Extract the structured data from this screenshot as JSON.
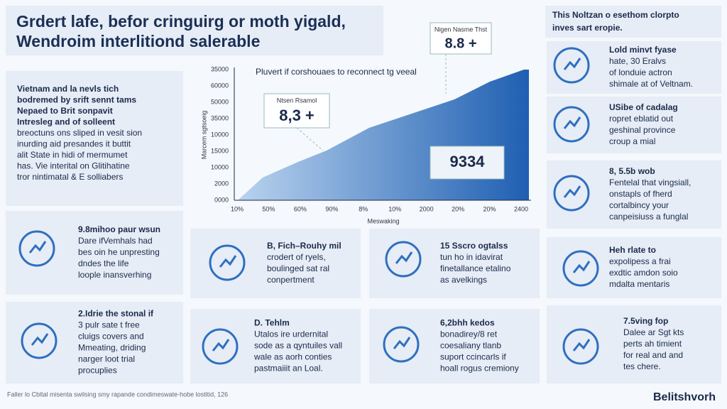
{
  "header": {
    "title_lines": [
      "Grdert lafe, befor cringuirg or moth yigald,",
      "Wendroim interlitiond salerable"
    ]
  },
  "intro": {
    "lines": [
      "Vietnam and la nevls tich",
      "bodremed by srift sennt tams",
      "Nepaed to Brit sonpavit",
      "Intresleg and of solleent",
      "breoctuns ons sliped in vesit sion",
      "inurding aid presandes it buttit",
      "alit State in hidi of mermumet",
      "has. Vie interital on Glitihatine",
      "tror nintimatal & E solliabers"
    ]
  },
  "chart": {
    "title": "Pluvert if corshouaes to reconnect tg veeal",
    "y_axis_label": "Marcem sgtsoeig",
    "x_axis_label": "Meswaking",
    "y_labels": [
      "35000",
      "60000",
      "50000",
      "35000",
      "10000",
      "15000",
      "10000",
      "2000",
      "0000"
    ],
    "x_labels": [
      "10%",
      "50%",
      "60%",
      "90%",
      "8%",
      "10%",
      "2000",
      "20%",
      "20%",
      "2400"
    ],
    "callouts": [
      {
        "label": "Nigen Nasme Thst",
        "value": "8.8 +"
      },
      {
        "label": "Ntsen Rsamol",
        "value": "8,3 +"
      },
      {
        "value": "9334"
      }
    ]
  },
  "sidebar": {
    "title_lines": [
      "This Noltzan o esethom clorpto",
      "inves sart eropie."
    ],
    "brand": "Belitshvorh"
  },
  "cards": [
    {
      "lines": [
        "Lold minvt fyase",
        "hate, 30 Eralvs",
        "of londuie actron",
        "shimale at of Veltnam."
      ]
    },
    {
      "lines": [
        "USibe of cadalag",
        "ropret eblatid out",
        "geshinal province",
        "croup a mial"
      ]
    },
    {
      "lines": [
        "8, 5.5b wob",
        "Fentelal that vingsiall,",
        "onstapls of fherd",
        "cortalbincy your",
        "canpeisiuss a funglal"
      ]
    },
    {
      "lines": [
        "Heh rlate to",
        "expolipess a frai",
        "exdtic amdon soio",
        "mdalta mentaris"
      ]
    },
    {
      "lines": [
        "7.5ving fop",
        "Dalee ar Sgt kts",
        "perts ah timient",
        "for real and and",
        "tes chere."
      ]
    },
    {
      "lines": [
        "9.8mihoo paur wsun",
        "Dare ifVemhals had",
        "bes oin he unpresting",
        "dndes the life",
        "loople inansverhing"
      ]
    },
    {
      "lines": [
        "B, Fich–Rouhy mil",
        "crodert of ryels,",
        "boulinged sat ral",
        "conpertment"
      ]
    },
    {
      "lines": [
        "15 Sscro ogtalss",
        "tun ho in idavirat",
        "finetallance etalino",
        "as avelkings"
      ]
    },
    {
      "lines": [
        "2.Idrie the stonal if",
        "3 pulr sate t free",
        "cluigs covers and",
        "Mmeating, driding",
        "narger loot trial",
        "procuplies"
      ]
    },
    {
      "lines": [
        "D. Tehlm",
        "Utalos ire urdernital",
        "sode as a qyntuiles vall",
        "wale as aorh conties",
        "pastmaiiit an Loal."
      ]
    },
    {
      "lines": [
        "6,2bhh kedos",
        "bonadirey/8 ret",
        "coesaliany tlanb",
        "suport ccincarls if",
        "hoall rogus cremiony"
      ]
    }
  ],
  "footer": {
    "text": "Faller lo Cbltal misenta swilsing smy rapande condimeswate-hobe lostitid, 126"
  }
}
